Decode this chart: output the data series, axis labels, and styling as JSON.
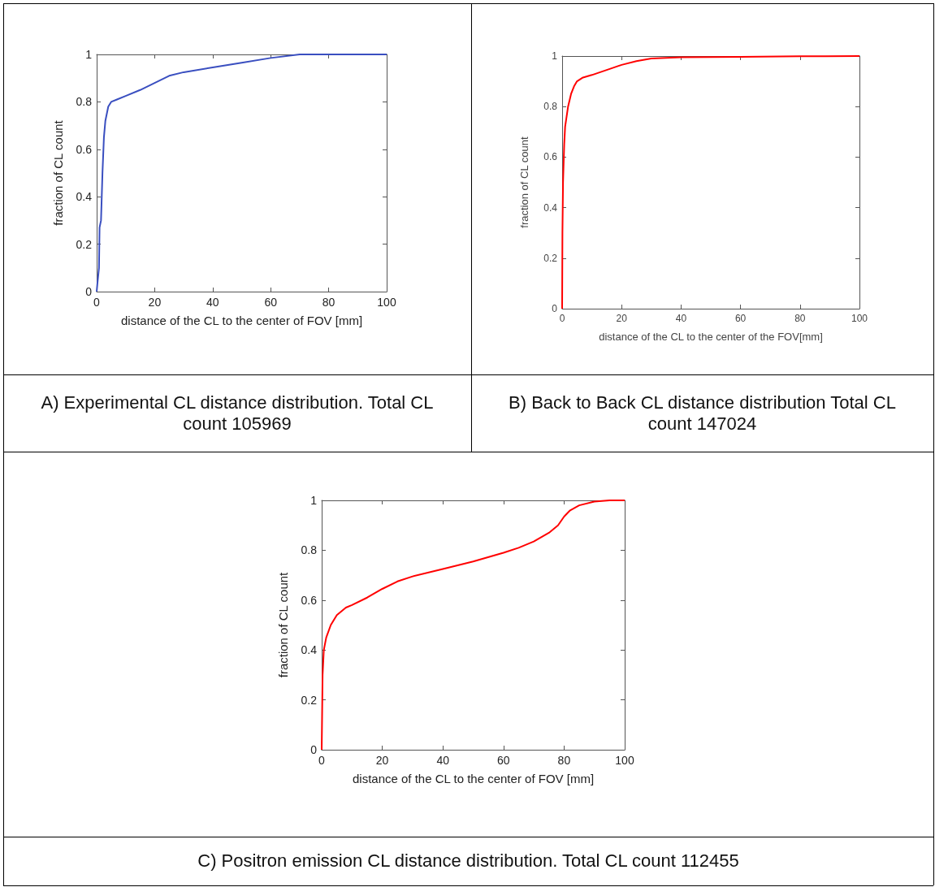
{
  "chart_data": [
    {
      "type": "line",
      "xlabel": "distance of the CL to the center of FOV [mm]",
      "ylabel": "fraction of CL count",
      "annotations": [
        "A) Experimental CL distance distribution. Total CL count 105969"
      ],
      "xlim": [
        0,
        100
      ],
      "xticks": [
        0,
        20,
        40,
        60,
        80,
        100
      ],
      "ylim": [
        0,
        1
      ],
      "yticks": [
        0,
        0.2,
        0.4,
        0.6,
        0.8,
        1
      ],
      "grid": false,
      "series": [
        {
          "color": "#3a4fc0",
          "x": [
            0,
            0.3,
            0.8,
            1,
            1.5,
            2,
            2.5,
            3,
            4,
            5,
            7,
            10,
            15,
            20,
            25,
            30,
            40,
            50,
            60,
            70,
            80,
            100
          ],
          "values": [
            0,
            0.04,
            0.1,
            0.27,
            0.3,
            0.5,
            0.65,
            0.72,
            0.78,
            0.8,
            0.81,
            0.825,
            0.85,
            0.88,
            0.91,
            0.925,
            0.945,
            0.965,
            0.985,
            1,
            1,
            1
          ]
        }
      ]
    },
    {
      "type": "line",
      "xlabel": "distance of the CL to the center of the FOV[mm]",
      "ylabel": "fraction of CL count",
      "annotations": [
        "B) Back to Back CL distance distribution Total CL count 147024"
      ],
      "xlim": [
        0,
        100
      ],
      "xticks": [
        0,
        20,
        40,
        60,
        80,
        100
      ],
      "ylim": [
        0,
        1
      ],
      "yticks": [
        0,
        0.2,
        0.4,
        0.6,
        0.8,
        1
      ],
      "grid": false,
      "series": [
        {
          "color": "#ff0000",
          "x": [
            0,
            0.1,
            0.3,
            0.7,
            1,
            2,
            3,
            4,
            5,
            7,
            10,
            15,
            20,
            25,
            30,
            40,
            60,
            80,
            100
          ],
          "values": [
            0,
            0.3,
            0.5,
            0.65,
            0.72,
            0.8,
            0.85,
            0.88,
            0.9,
            0.915,
            0.925,
            0.945,
            0.965,
            0.98,
            0.99,
            0.995,
            0.997,
            0.999,
            1
          ]
        }
      ]
    },
    {
      "type": "line",
      "xlabel": "distance of the CL to the center of FOV [mm]",
      "ylabel": "fraction of CL count",
      "annotations": [
        "C) Positron emission CL distance distribution. Total CL count 112455"
      ],
      "xlim": [
        0,
        100
      ],
      "xticks": [
        0,
        20,
        40,
        60,
        80,
        100
      ],
      "ylim": [
        0,
        1
      ],
      "yticks": [
        0,
        0.2,
        0.4,
        0.6,
        0.8,
        1
      ],
      "grid": false,
      "series": [
        {
          "color": "#ff0000",
          "x": [
            0,
            0.1,
            0.3,
            0.7,
            1.5,
            3,
            5,
            8,
            10,
            15,
            20,
            25,
            30,
            40,
            50,
            60,
            65,
            70,
            75,
            78,
            80,
            82,
            85,
            90,
            95,
            100
          ],
          "values": [
            0,
            0.1,
            0.3,
            0.4,
            0.45,
            0.5,
            0.54,
            0.57,
            0.58,
            0.61,
            0.645,
            0.675,
            0.695,
            0.725,
            0.755,
            0.79,
            0.81,
            0.835,
            0.87,
            0.9,
            0.935,
            0.96,
            0.98,
            0.995,
            1,
            1
          ]
        }
      ]
    }
  ]
}
